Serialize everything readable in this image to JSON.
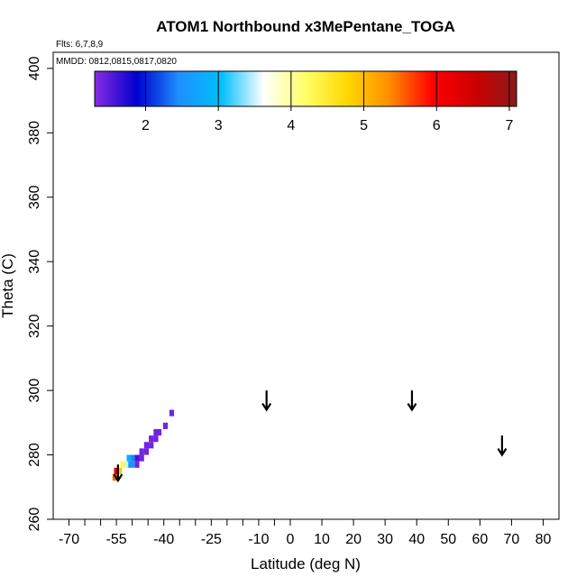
{
  "chart_data": {
    "type": "heatmap",
    "title": "ATOM1 Northbound x3MePentane_TOGA",
    "subtitle_flights": "Flts: 6,7,8,9",
    "subtitle_dates": "MMDD: 0812,0815,0817,0820",
    "xlabel": "Latitude (deg N)",
    "ylabel": "Theta (C)",
    "xlim": [
      -75,
      85
    ],
    "ylim": [
      260,
      405
    ],
    "x_ticks": [
      -70,
      -55,
      -40,
      -25,
      -10,
      0,
      10,
      20,
      30,
      40,
      50,
      60,
      70,
      80
    ],
    "x_tick_labels": [
      "-70",
      "-55",
      "-40",
      "-25",
      "-10",
      "0",
      "10",
      "20",
      "30",
      "40",
      "50",
      "60",
      "70",
      "80"
    ],
    "x_minor_ticks": [
      -65,
      -60,
      -50,
      -45,
      -35,
      -30,
      -20,
      -15,
      -5
    ],
    "y_ticks": [
      260,
      280,
      300,
      320,
      340,
      360,
      380,
      400
    ],
    "y_tick_labels": [
      "260",
      "280",
      "300",
      "320",
      "340",
      "360",
      "380",
      "400"
    ],
    "colorbar": {
      "min": 1.3,
      "max": 7.1,
      "ticks": [
        2,
        3,
        4,
        5,
        6,
        7
      ],
      "tick_labels": [
        "2",
        "3",
        "4",
        "5",
        "6",
        "7"
      ],
      "stops": [
        "#8a2be2",
        "#0000cd",
        "#1e90ff",
        "#00bfff",
        "#ffffff",
        "#ffff66",
        "#ffd700",
        "#ff8c00",
        "#ff0000",
        "#cd0000",
        "#8b1a1a"
      ]
    },
    "cell_size": {
      "dlat": 1.5,
      "dtheta": 2
    },
    "cells": [
      {
        "lat": -37.5,
        "theta": 293,
        "value": 1.4
      },
      {
        "lat": -39.5,
        "theta": 289,
        "value": 1.4
      },
      {
        "lat": -41.5,
        "theta": 287,
        "value": 1.4
      },
      {
        "lat": -42.5,
        "theta": 287,
        "value": 1.4
      },
      {
        "lat": -42.5,
        "theta": 285,
        "value": 1.4
      },
      {
        "lat": -44.0,
        "theta": 285,
        "value": 1.4
      },
      {
        "lat": -44.0,
        "theta": 283,
        "value": 1.4
      },
      {
        "lat": -45.5,
        "theta": 283,
        "value": 1.4
      },
      {
        "lat": -45.5,
        "theta": 281,
        "value": 1.4
      },
      {
        "lat": -47.0,
        "theta": 281,
        "value": 1.4
      },
      {
        "lat": -47.0,
        "theta": 279,
        "value": 1.4
      },
      {
        "lat": -48.5,
        "theta": 279,
        "value": 1.6
      },
      {
        "lat": -48.5,
        "theta": 277,
        "value": 1.4
      },
      {
        "lat": -50.0,
        "theta": 279,
        "value": 2.4
      },
      {
        "lat": -50.0,
        "theta": 277,
        "value": 2.6
      },
      {
        "lat": -51.0,
        "theta": 279,
        "value": 2.8
      },
      {
        "lat": -51.0,
        "theta": 277,
        "value": 2.5
      },
      {
        "lat": -52.0,
        "theta": 277,
        "value": 3.5
      },
      {
        "lat": -53.0,
        "theta": 277,
        "value": 4.3
      },
      {
        "lat": -54.0,
        "theta": 275,
        "value": 4.9
      },
      {
        "lat": -55.0,
        "theta": 275,
        "value": 6.4
      },
      {
        "lat": -55.5,
        "theta": 273,
        "value": 5.5
      }
    ],
    "arrows": [
      {
        "lat": -54.5,
        "theta_top": 277,
        "theta_tip": 272
      },
      {
        "lat": -7.5,
        "theta_top": 300,
        "theta_tip": 294
      },
      {
        "lat": 38.5,
        "theta_top": 300,
        "theta_tip": 294
      },
      {
        "lat": 67,
        "theta_top": 286,
        "theta_tip": 280
      }
    ]
  }
}
